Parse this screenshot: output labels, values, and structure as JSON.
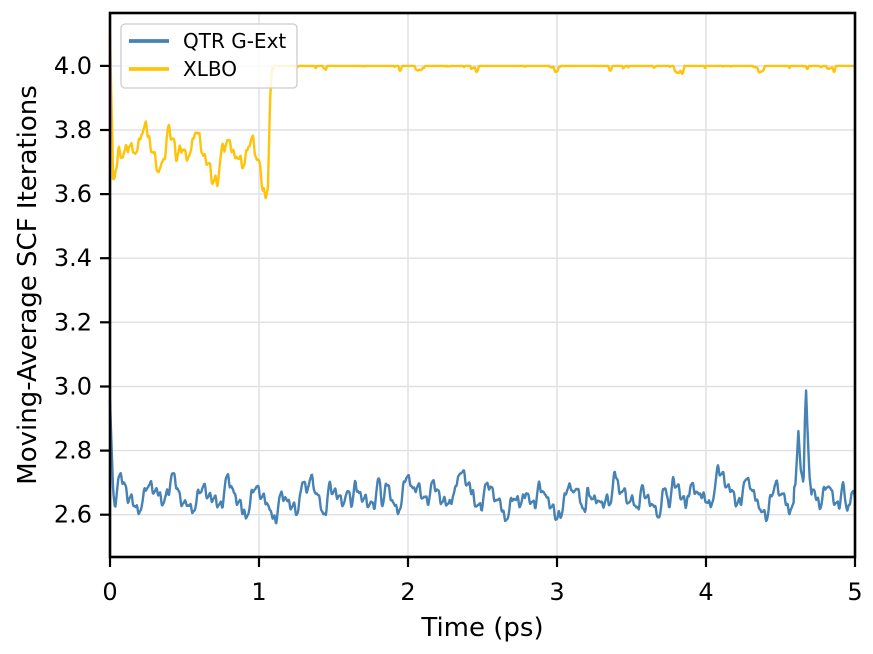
{
  "chart_data": {
    "type": "line",
    "title": "",
    "xlabel": "Time (ps)",
    "ylabel": "Moving-Average SCF Iterations",
    "xlim": [
      0,
      5
    ],
    "ylim": [
      2.468,
      4.165
    ],
    "xticks": {
      "values": [
        0,
        1,
        2,
        3,
        4,
        5
      ],
      "labels": [
        "0",
        "1",
        "2",
        "3",
        "4",
        "5"
      ]
    },
    "yticks": {
      "values": [
        2.6,
        2.8,
        3.0,
        3.2,
        3.4,
        3.6,
        3.8,
        4.0
      ],
      "labels": [
        "2.6",
        "2.8",
        "3.0",
        "3.2",
        "3.4",
        "3.6",
        "3.8",
        "4.0"
      ]
    },
    "grid": true,
    "colors": {
      "grid": "#dfdfe5",
      "spine": "#000000",
      "tick": "#000000",
      "text": "#000000",
      "legend_border": "#cccccc",
      "legend_background": "#ffffff"
    },
    "legend": {
      "location": "upper left",
      "opacity": 0.85
    },
    "series": [
      {
        "name": "QTR G-Ext",
        "color": "#4682B4",
        "linewidth": 2.4,
        "seed": 3,
        "step": 0.004,
        "description": "Noisy trace fluctuating about 2.66 SCF iterations; initial spike to ~2.95 at t=0 and a sharp spike to ~2.99 near t=4.67; typical band 2.55-2.78.",
        "base_keypoints": [
          [
            0,
            2.955
          ],
          [
            0.01,
            2.82
          ],
          [
            0.022,
            2.66
          ],
          [
            0.6,
            2.66
          ],
          [
            1.2,
            2.645
          ],
          [
            2.0,
            2.665
          ],
          [
            3.0,
            2.655
          ],
          [
            4.0,
            2.66
          ],
          [
            4.55,
            2.66
          ],
          [
            4.6,
            2.7
          ],
          [
            4.62,
            2.86
          ],
          [
            4.635,
            2.74
          ],
          [
            4.655,
            2.7
          ],
          [
            4.665,
            2.92
          ],
          [
            4.672,
            2.99
          ],
          [
            4.68,
            2.88
          ],
          [
            4.695,
            2.72
          ],
          [
            4.71,
            2.65
          ],
          [
            5,
            2.655
          ]
        ],
        "noise_segments": [
          {
            "x0": 0.025,
            "x1": 4.59,
            "amp": 0.065
          },
          {
            "x0": 4.59,
            "x1": 4.71,
            "amp": 0.012
          },
          {
            "x0": 4.71,
            "x1": 5.0,
            "amp": 0.065
          }
        ]
      },
      {
        "name": "XLBO",
        "color": "#FFC40A",
        "linewidth": 2.4,
        "seed": 8,
        "step": 0.004,
        "description": "Starts at ~4.10 at t=0, drops to a noisy plateau around 3.72 (range ~3.58-3.92) until t~1.05, dips to ~3.58, then jumps to 4.0 and stays flat with occasional small dips to ~3.93-3.97.",
        "base_keypoints": [
          [
            0,
            4.095
          ],
          [
            0.008,
            3.92
          ],
          [
            0.02,
            3.7
          ],
          [
            0.25,
            3.76
          ],
          [
            0.45,
            3.7
          ],
          [
            0.55,
            3.76
          ],
          [
            0.75,
            3.7
          ],
          [
            0.95,
            3.74
          ],
          [
            1.0,
            3.7
          ],
          [
            1.02,
            3.65
          ],
          [
            1.045,
            3.585
          ],
          [
            1.06,
            3.62
          ],
          [
            1.075,
            3.9
          ],
          [
            1.09,
            4.01
          ],
          [
            5,
            4.01
          ]
        ],
        "noise_segments": [
          {
            "x0": 0.02,
            "x1": 1.03,
            "amp": 0.08
          },
          {
            "x0": 1.09,
            "x1": 5.0,
            "amp": 0.028,
            "clamp_max": 4.0
          }
        ]
      }
    ]
  }
}
